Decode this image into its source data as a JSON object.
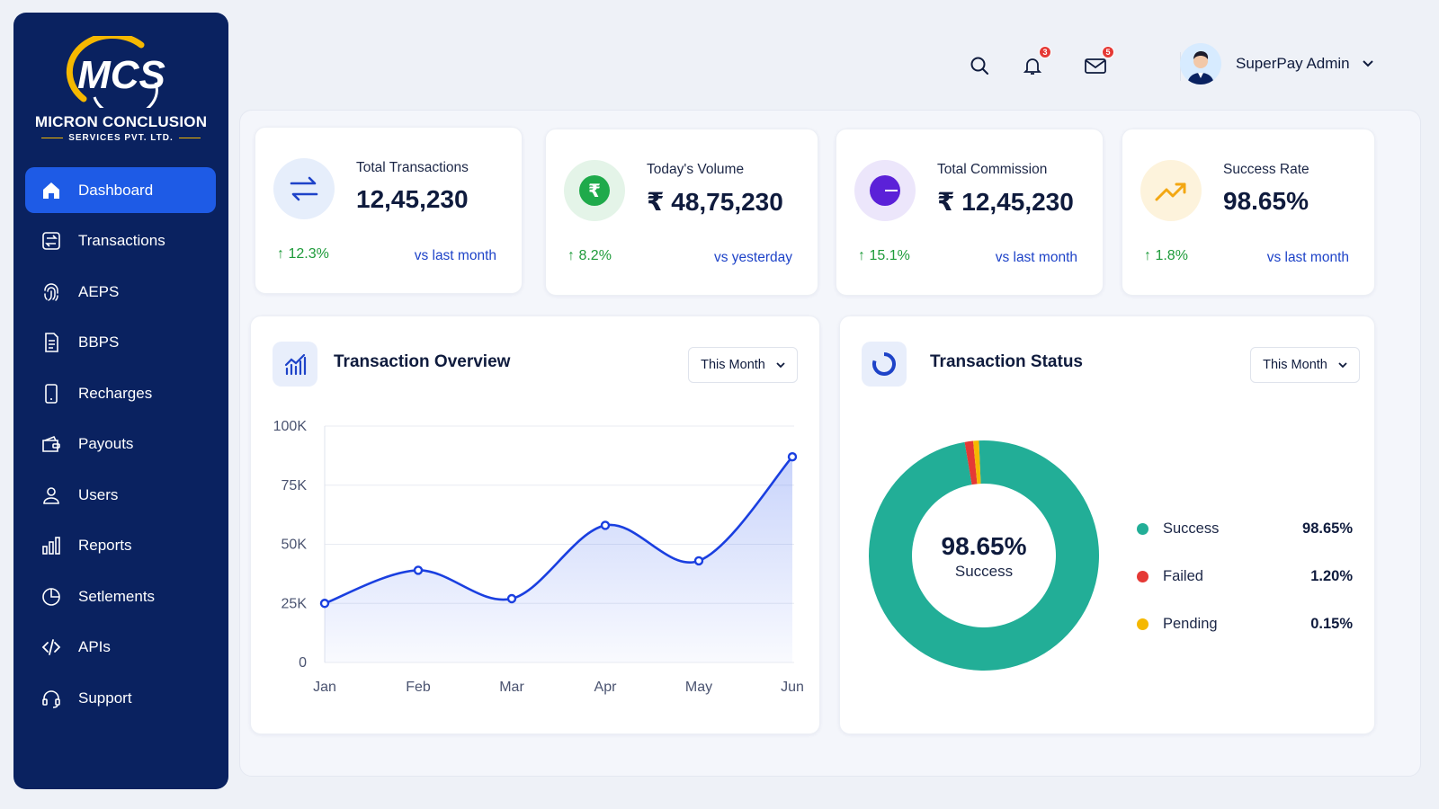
{
  "brand": {
    "logo_text": "MCS",
    "name": "MICRON CONCLUSION",
    "sub": "SERVICES PVT. LTD."
  },
  "sidebar": {
    "items": [
      {
        "label": "Dashboard",
        "icon": "home-icon",
        "active": true
      },
      {
        "label": "Transactions",
        "icon": "transactions-icon"
      },
      {
        "label": "AEPS",
        "icon": "fingerprint-icon"
      },
      {
        "label": "BBPS",
        "icon": "bill-icon"
      },
      {
        "label": "Recharges",
        "icon": "mobile-icon"
      },
      {
        "label": "Payouts",
        "icon": "wallet-icon"
      },
      {
        "label": "Users",
        "icon": "user-icon"
      },
      {
        "label": "Reports",
        "icon": "bar-chart-icon"
      },
      {
        "label": "Setlements",
        "icon": "pie-chart-icon"
      },
      {
        "label": "APIs",
        "icon": "code-icon"
      },
      {
        "label": "Support",
        "icon": "headset-icon"
      }
    ]
  },
  "topbar": {
    "notifications_count": "3",
    "messages_count": "5",
    "user_name": "SuperPay Admin"
  },
  "stats": [
    {
      "label": "Total Transactions",
      "value": "12,45,230",
      "change": "↑ 12.3%",
      "compare": "vs last month",
      "icon": "swap-arrows-icon",
      "color": "#1e43c8",
      "bg": "#e6eefb"
    },
    {
      "label": "Today's Volume",
      "value": "₹ 48,75,230",
      "change": "↑ 8.2%",
      "compare": "vs yesterday",
      "icon": "rupee-coin-icon",
      "color": "#1faa4b",
      "bg": "#e4f4e8"
    },
    {
      "label": "Total Commission",
      "value": "₹ 12,45,230",
      "change": "↑ 15.1%",
      "compare": "vs last month",
      "icon": "commission-pie-icon",
      "color": "#5b21d8",
      "bg": "#ece6fb"
    },
    {
      "label": "Success Rate",
      "value": "98.65%",
      "change": "↑ 1.8%",
      "compare": "vs last month",
      "icon": "trend-up-icon",
      "color": "#f3a712",
      "bg": "#fdf3dc"
    }
  ],
  "overview": {
    "title": "Transaction Overview",
    "filter": "This Month"
  },
  "status": {
    "title": "Transaction Status",
    "filter": "This Month",
    "center_value": "98.65%",
    "center_label": "Success",
    "legend": [
      {
        "name": "Success",
        "value": "98.65%",
        "color": "#22ae97"
      },
      {
        "name": "Failed",
        "value": "1.20%",
        "color": "#e53935"
      },
      {
        "name": "Pending",
        "value": "0.15%",
        "color": "#f5b800"
      }
    ]
  },
  "chart_data": [
    {
      "type": "area",
      "categories": [
        "Jan",
        "Feb",
        "Mar",
        "Apr",
        "May",
        "Jun"
      ],
      "series": [
        {
          "values": [
            25000,
            39000,
            27000,
            58000,
            43000,
            87000
          ]
        }
      ],
      "y_ticks": [
        "0",
        "25K",
        "50K",
        "75K",
        "100K"
      ],
      "ylim": [
        0,
        100000
      ],
      "grid": true,
      "color": "#1a3fe0"
    },
    {
      "type": "pie",
      "categories": [
        "Success",
        "Failed",
        "Pending"
      ],
      "values": [
        98.65,
        1.2,
        0.15
      ],
      "colors": [
        "#22ae97",
        "#e53935",
        "#f5b800"
      ]
    }
  ]
}
